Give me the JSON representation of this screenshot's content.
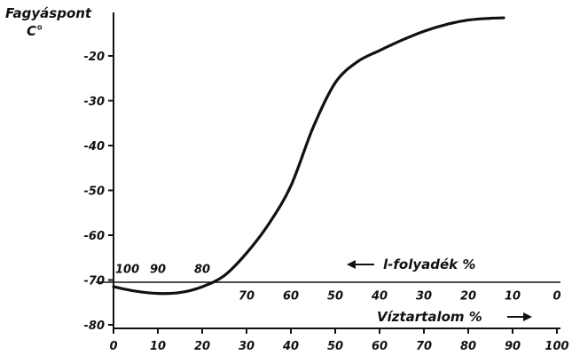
{
  "chart_data": {
    "type": "line",
    "title": "",
    "ylabel": "Fagyáspont",
    "yunit": "C°",
    "xlabel": "Víztartalom %",
    "x2label": "l-folyadék %",
    "xlim": [
      0,
      100
    ],
    "ylim": [
      -80,
      -10
    ],
    "y_ticks": [
      {
        "value": -20,
        "label": "-20"
      },
      {
        "value": -30,
        "label": "-30"
      },
      {
        "value": -40,
        "label": "-40"
      },
      {
        "value": -50,
        "label": "-50"
      },
      {
        "value": -60,
        "label": "-60"
      },
      {
        "value": -70,
        "label": "-70"
      },
      {
        "value": -80,
        "label": "-80"
      }
    ],
    "x_ticks": [
      {
        "value": 0,
        "label": "0"
      },
      {
        "value": 10,
        "label": "10"
      },
      {
        "value": 20,
        "label": "20"
      },
      {
        "value": 30,
        "label": "30"
      },
      {
        "value": 40,
        "label": "40"
      },
      {
        "value": 50,
        "label": "50"
      },
      {
        "value": 60,
        "label": "60"
      },
      {
        "value": 70,
        "label": "70"
      },
      {
        "value": 80,
        "label": "80"
      },
      {
        "value": 90,
        "label": "90"
      },
      {
        "value": 100,
        "label": "100"
      }
    ],
    "x2_ticks": [
      {
        "value": 0,
        "label": "100"
      },
      {
        "value": 10,
        "label": "90"
      },
      {
        "value": 20,
        "label": "80"
      },
      {
        "value": 30,
        "label": "70"
      },
      {
        "value": 40,
        "label": "60"
      },
      {
        "value": 50,
        "label": "50"
      },
      {
        "value": 60,
        "label": "40"
      },
      {
        "value": 70,
        "label": "30"
      },
      {
        "value": 80,
        "label": "20"
      },
      {
        "value": 90,
        "label": "10"
      },
      {
        "value": 100,
        "label": "0"
      }
    ],
    "x2_baseline": -70,
    "series": [
      {
        "x": [
          0,
          5,
          10,
          15,
          20,
          25,
          30,
          35,
          40,
          45,
          50,
          55,
          60,
          65,
          70,
          75,
          80,
          85,
          88
        ],
        "y": [
          -71.5,
          -72.5,
          -73,
          -72.8,
          -71.5,
          -69,
          -64,
          -57.5,
          -49,
          -36,
          -26,
          -21.3,
          -18.8,
          -16.5,
          -14.5,
          -13,
          -12,
          -11.6,
          -11.5
        ]
      }
    ],
    "grid": false,
    "legend": "none"
  }
}
